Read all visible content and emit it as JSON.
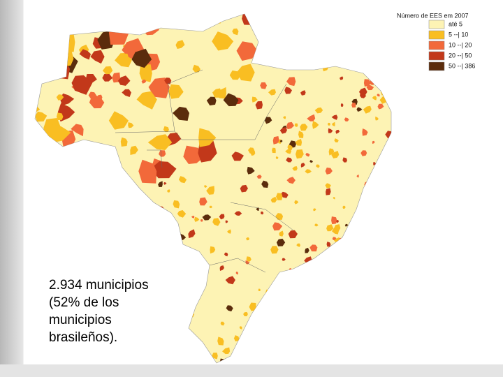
{
  "legend": {
    "title": "Número de EES em 2007",
    "items": [
      {
        "label": "até 5",
        "color": "#fdf3b4"
      },
      {
        "label": "5 --| 10",
        "color": "#f9be22"
      },
      {
        "label": "10 --| 20",
        "color": "#f2693a"
      },
      {
        "label": "20 --| 50",
        "color": "#c2381a"
      },
      {
        "label": "50 --| 386",
        "color": "#5b2c0c"
      }
    ]
  },
  "caption": {
    "lines": [
      "2.934 municipios",
      "(52% de los",
      "municipios",
      "brasileños)."
    ]
  }
}
